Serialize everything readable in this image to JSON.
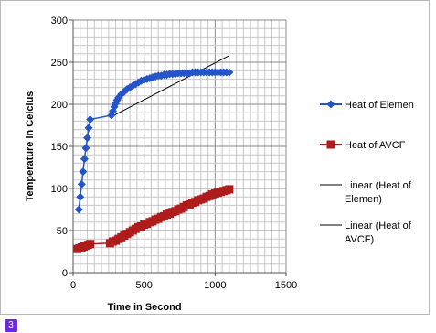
{
  "chart_data": {
    "type": "scatter",
    "xlabel": "Time in Second",
    "ylabel": "Temperature in Celcius",
    "xlim": [
      0,
      1500
    ],
    "ylim": [
      0,
      300
    ],
    "xticks": [
      0,
      500,
      1000,
      1500
    ],
    "yticks": [
      0,
      50,
      100,
      150,
      200,
      250,
      300
    ],
    "grid": true,
    "legend_position": "right",
    "series": [
      {
        "name": "Heat of Elemen",
        "color": "#2454c8",
        "marker": "diamond",
        "x": [
          40,
          50,
          60,
          70,
          80,
          90,
          100,
          110,
          120,
          270,
          280,
          290,
          300,
          310,
          320,
          340,
          360,
          380,
          400,
          420,
          440,
          460,
          480,
          500,
          520,
          540,
          560,
          580,
          600,
          620,
          640,
          660,
          680,
          700,
          720,
          740,
          760,
          780,
          800,
          820,
          840,
          860,
          880,
          900,
          920,
          940,
          960,
          980,
          1000,
          1020,
          1040,
          1060,
          1080,
          1100
        ],
        "y": [
          75,
          90,
          105,
          120,
          135,
          148,
          160,
          172,
          182,
          187,
          192,
          197,
          201,
          205,
          208,
          212,
          215,
          218,
          220,
          222,
          224,
          226,
          228,
          229,
          230,
          231,
          232,
          233,
          234,
          234,
          235,
          235,
          236,
          236,
          236,
          237,
          237,
          237,
          237,
          237,
          238,
          238,
          238,
          238,
          238,
          238,
          238,
          238,
          238,
          238,
          238,
          238,
          238,
          238
        ]
      },
      {
        "name": "Heat of AVCF",
        "color": "#b01c1c",
        "marker": "square",
        "x": [
          30,
          45,
          60,
          75,
          90,
          105,
          120,
          260,
          280,
          300,
          320,
          340,
          360,
          380,
          400,
          420,
          440,
          460,
          480,
          500,
          520,
          540,
          560,
          580,
          600,
          620,
          640,
          660,
          680,
          700,
          720,
          740,
          760,
          780,
          800,
          820,
          840,
          860,
          880,
          900,
          920,
          940,
          960,
          980,
          1000,
          1020,
          1040,
          1060,
          1080,
          1100
        ],
        "y": [
          28,
          29,
          30,
          31,
          32,
          33,
          34,
          35,
          37,
          38,
          40,
          42,
          44,
          46,
          48,
          50,
          52,
          54,
          55,
          57,
          58,
          60,
          61,
          63,
          64,
          66,
          67,
          69,
          70,
          72,
          73,
          75,
          76,
          78,
          80,
          81,
          83,
          84,
          86,
          87,
          88,
          90,
          91,
          93,
          94,
          95,
          96,
          97,
          98,
          99
        ]
      },
      {
        "name": "Linear (Heat of Elemen)",
        "color": "#000000",
        "type": "trendline",
        "x": [
          290,
          1100
        ],
        "y": [
          187,
          258
        ]
      },
      {
        "name": "Linear (Heat of AVCF)",
        "color": "#000000",
        "type": "trendline",
        "x": [
          270,
          1100
        ],
        "y": [
          34,
          99
        ]
      }
    ],
    "legend": [
      {
        "label": "Heat of Elemen",
        "lines": [
          "Heat of Elemen"
        ]
      },
      {
        "label": "Heat of AVCF",
        "lines": [
          "Heat of AVCF"
        ]
      },
      {
        "label": "Linear (Heat of Elemen)",
        "lines": [
          "Linear (Heat of",
          "Elemen)"
        ]
      },
      {
        "label": "Linear (Heat of AVCF)",
        "lines": [
          "Linear (Heat of",
          "AVCF)"
        ]
      }
    ]
  },
  "page_badge": "3"
}
